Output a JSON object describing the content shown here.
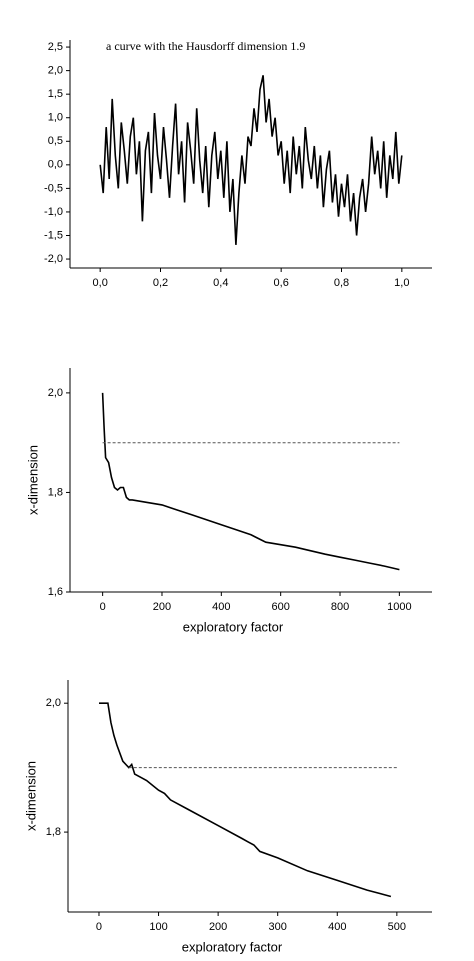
{
  "chart_data": [
    {
      "type": "line",
      "annotation": "a curve with the Hausdorff dimension 1.9",
      "xlim": [
        -0.1,
        1.1
      ],
      "ylim": [
        -2.19,
        2.65
      ],
      "xticks": [
        {
          "value": 0,
          "label": "0,0"
        },
        {
          "value": 0.2,
          "label": "0,2"
        },
        {
          "value": 0.4,
          "label": "0,4"
        },
        {
          "value": 0.6,
          "label": "0,6"
        },
        {
          "value": 0.8,
          "label": "0,8"
        },
        {
          "value": 1,
          "label": "1,0"
        }
      ],
      "yticks": [
        {
          "value": -2,
          "label": "-2,0"
        },
        {
          "value": -1.5,
          "label": "-1,5"
        },
        {
          "value": -1,
          "label": "-1,0"
        },
        {
          "value": -0.5,
          "label": "-0,5"
        },
        {
          "value": 0,
          "label": "0,0"
        },
        {
          "value": 0.5,
          "label": "0,5"
        },
        {
          "value": 1,
          "label": "1,0"
        },
        {
          "value": 1.5,
          "label": "1,5"
        },
        {
          "value": 2,
          "label": "2,0"
        },
        {
          "value": 2.5,
          "label": "2,5"
        }
      ],
      "series": [
        {
          "color": "#000000",
          "x": [
            0,
            0.01,
            0.02,
            0.03,
            0.04,
            0.05,
            0.06,
            0.07,
            0.08,
            0.09,
            0.1,
            0.11,
            0.12,
            0.13,
            0.14,
            0.15,
            0.16,
            0.17,
            0.18,
            0.19,
            0.2,
            0.21,
            0.22,
            0.23,
            0.24,
            0.25,
            0.26,
            0.27,
            0.28,
            0.29,
            0.3,
            0.31,
            0.32,
            0.33,
            0.34,
            0.35,
            0.36,
            0.37,
            0.38,
            0.39,
            0.4,
            0.41,
            0.42,
            0.43,
            0.44,
            0.45,
            0.46,
            0.47,
            0.48,
            0.49,
            0.5,
            0.51,
            0.52,
            0.53,
            0.54,
            0.55,
            0.56,
            0.57,
            0.58,
            0.59,
            0.6,
            0.61,
            0.62,
            0.63,
            0.64,
            0.65,
            0.66,
            0.67,
            0.68,
            0.69,
            0.7,
            0.71,
            0.72,
            0.73,
            0.74,
            0.75,
            0.76,
            0.77,
            0.78,
            0.79,
            0.8,
            0.81,
            0.82,
            0.83,
            0.84,
            0.85,
            0.86,
            0.87,
            0.88,
            0.89,
            0.9,
            0.91,
            0.92,
            0.93,
            0.94,
            0.95,
            0.96,
            0.97,
            0.98,
            0.99,
            1
          ],
          "values": [
            0,
            -0.6,
            0.8,
            -0.3,
            1.4,
            0.2,
            -0.5,
            0.9,
            0.3,
            -0.4,
            0.6,
            1.0,
            -0.2,
            0.5,
            -1.2,
            0.3,
            0.7,
            -0.6,
            1.1,
            0.2,
            -0.3,
            0.8,
            0.1,
            -0.7,
            0.4,
            1.3,
            -0.2,
            0.5,
            -0.8,
            0.9,
            0.3,
            -0.4,
            1.2,
            0.1,
            -0.6,
            0.4,
            -0.9,
            0.2,
            0.7,
            -0.3,
            0.3,
            -0.7,
            0.5,
            -1.0,
            -0.3,
            -1.7,
            -0.6,
            0.2,
            -0.4,
            0.6,
            0.4,
            1.2,
            0.7,
            1.6,
            1.9,
            0.9,
            1.4,
            0.6,
            1.0,
            0.2,
            0.5,
            -0.4,
            0.3,
            -0.6,
            0.6,
            -0.2,
            0.4,
            -0.5,
            0.8,
            0.1,
            -0.3,
            0.4,
            -0.5,
            0.2,
            -0.9,
            -0.1,
            0.3,
            -0.8,
            -0.2,
            -1.1,
            -0.4,
            -0.9,
            -0.2,
            -1.2,
            -0.6,
            -1.5,
            -0.7,
            -0.3,
            -1.0,
            -0.4,
            0.6,
            -0.2,
            0.3,
            -0.5,
            0.5,
            -0.7,
            0.2,
            -0.3,
            0.7,
            -0.4,
            0.2
          ]
        }
      ]
    },
    {
      "type": "line",
      "xlabel": "exploratory factor",
      "ylabel": "x-dimension",
      "xlim": [
        -110,
        1110
      ],
      "ylim": [
        1.6,
        2.05
      ],
      "xticks": [
        0,
        200,
        400,
        600,
        800,
        1000
      ],
      "yticks": [
        {
          "value": 1.6,
          "label": "1,6"
        },
        {
          "value": 1.8,
          "label": "1,8"
        },
        {
          "value": 2,
          "label": "2,0"
        }
      ],
      "series": [
        {
          "color": "#000000",
          "x": [
            0,
            5,
            10,
            20,
            30,
            40,
            50,
            60,
            70,
            80,
            90,
            100,
            150,
            200,
            250,
            300,
            350,
            400,
            450,
            500,
            550,
            600,
            650,
            700,
            750,
            800,
            850,
            900,
            950,
            1000
          ],
          "values": [
            2.0,
            1.93,
            1.87,
            1.86,
            1.83,
            1.81,
            1.805,
            1.81,
            1.81,
            1.79,
            1.785,
            1.785,
            1.78,
            1.775,
            1.765,
            1.755,
            1.745,
            1.735,
            1.725,
            1.715,
            1.7,
            1.695,
            1.69,
            1.683,
            1.676,
            1.67,
            1.664,
            1.658,
            1.652,
            1.645
          ]
        },
        {
          "color": "#555555",
          "dash": true,
          "x": [
            0,
            1000
          ],
          "values": [
            1.9,
            1.9
          ]
        }
      ]
    },
    {
      "type": "line",
      "xlabel": "exploratory factor",
      "ylabel": "x-dimension",
      "xlim": [
        -52,
        559
      ],
      "ylim": [
        1.676,
        2.036
      ],
      "xticks": [
        0,
        100,
        200,
        300,
        400,
        500
      ],
      "yticks": [
        {
          "value": 1.8,
          "label": "1,8"
        },
        {
          "value": 2,
          "label": "2,0"
        }
      ],
      "series": [
        {
          "color": "#000000",
          "x": [
            0,
            15,
            20,
            25,
            30,
            40,
            50,
            55,
            60,
            70,
            80,
            100,
            110,
            120,
            150,
            200,
            240,
            250,
            260,
            270,
            300,
            350,
            400,
            450,
            490
          ],
          "values": [
            2.0,
            2.0,
            1.97,
            1.95,
            1.935,
            1.91,
            1.9,
            1.905,
            1.89,
            1.885,
            1.88,
            1.865,
            1.86,
            1.85,
            1.835,
            1.81,
            1.79,
            1.785,
            1.78,
            1.77,
            1.76,
            1.74,
            1.725,
            1.71,
            1.7
          ]
        },
        {
          "color": "#555555",
          "dash": true,
          "x": [
            50,
            500
          ],
          "values": [
            1.9,
            1.9
          ]
        }
      ]
    }
  ]
}
